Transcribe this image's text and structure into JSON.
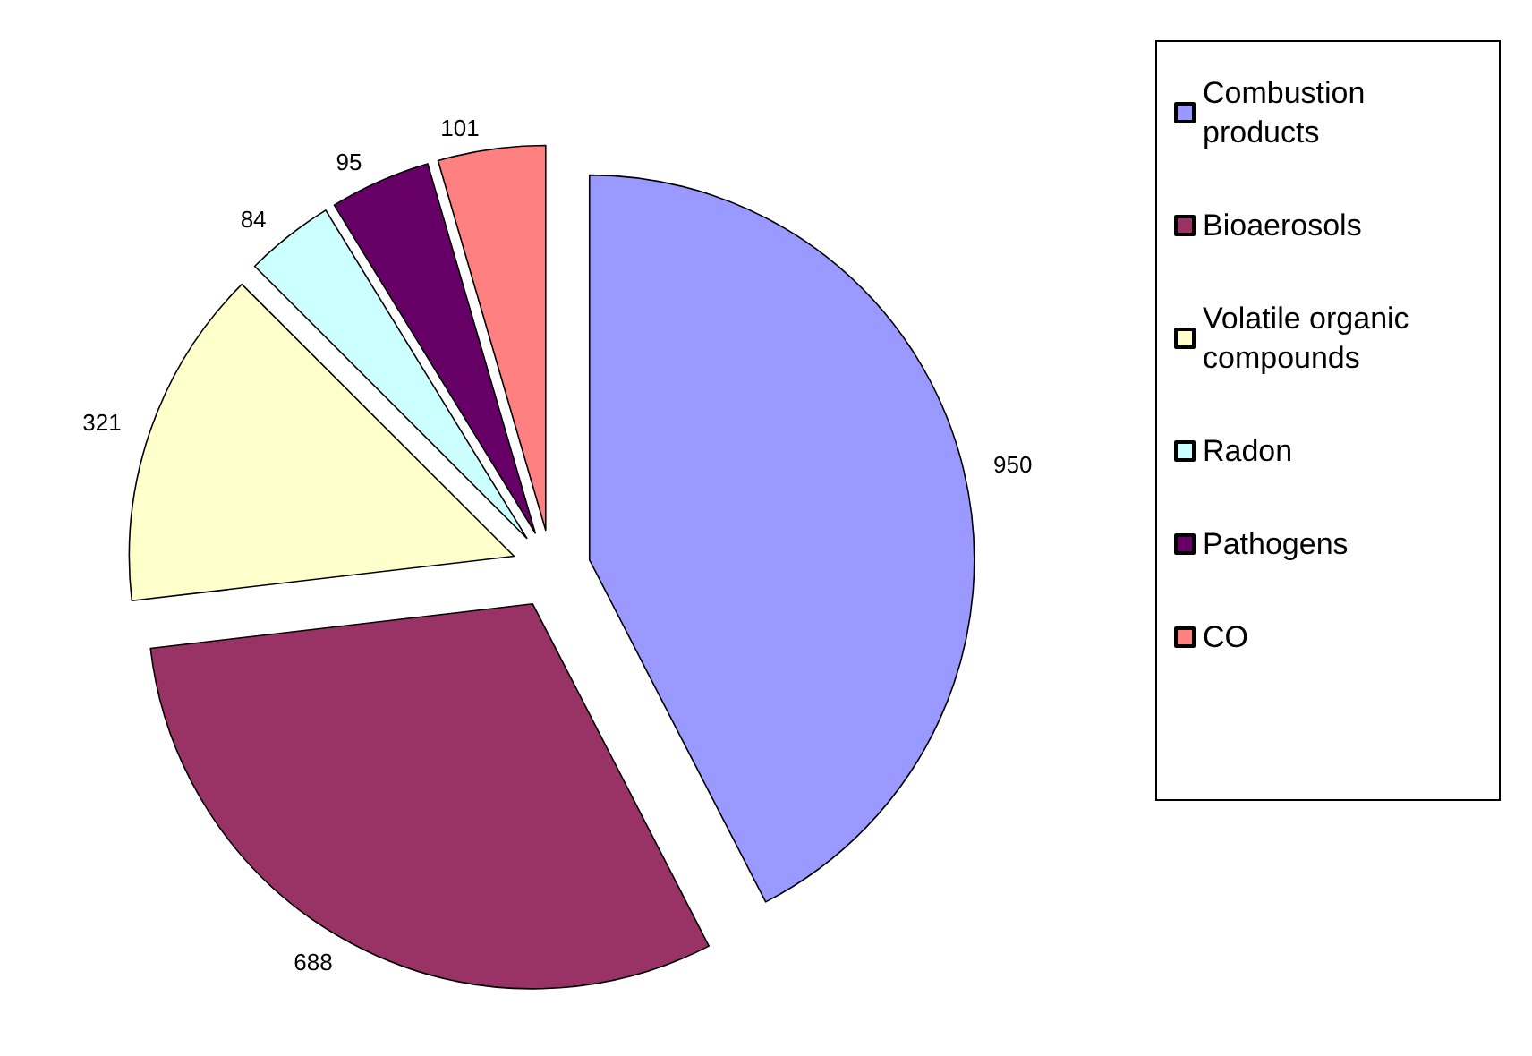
{
  "chart_data": {
    "type": "pie",
    "categories": [
      "Combustion products",
      "Bioaerosols",
      "Volatile organic compounds",
      "Radon",
      "Pathogens",
      "CO"
    ],
    "values": [
      950,
      688,
      321,
      84,
      95,
      101
    ],
    "colors": [
      "#9999ff",
      "#993366",
      "#ffffcc",
      "#ccffff",
      "#660066",
      "#ff8080"
    ],
    "data_labels": true,
    "legend": "right"
  }
}
